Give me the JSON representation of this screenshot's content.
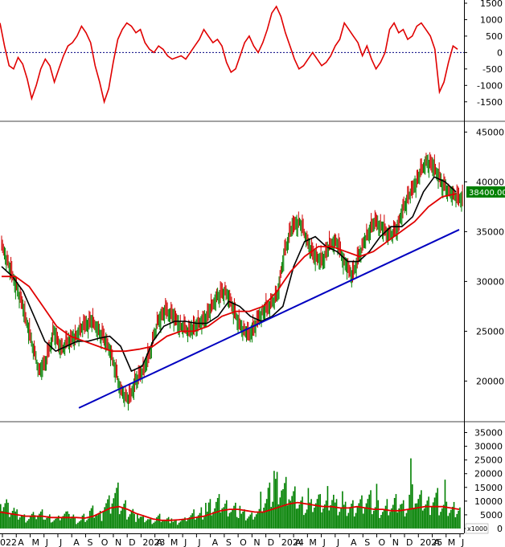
{
  "chart_data": [
    {
      "type": "line",
      "name": "oscillator-panel",
      "yticks": [
        1500,
        1000,
        500,
        0,
        -500,
        -1000,
        -1500
      ],
      "ylim": [
        -1750,
        1500
      ],
      "zero_line": true,
      "line_color": "#e00000",
      "signal_color": "#e00000",
      "values": [
        900,
        200,
        -400,
        -500,
        -150,
        -350,
        -800,
        -1400,
        -1000,
        -500,
        -200,
        -400,
        -900,
        -500,
        -100,
        200,
        300,
        500,
        800,
        600,
        300,
        -400,
        -900,
        -1500,
        -1100,
        -300,
        400,
        700,
        900,
        800,
        600,
        700,
        300,
        100,
        0,
        200,
        100,
        -100,
        -200,
        -150,
        -100,
        -200,
        0,
        200,
        400,
        700,
        500,
        300,
        400,
        200,
        -300,
        -600,
        -500,
        -100,
        300,
        500,
        200,
        0,
        300,
        700,
        1200,
        1400,
        1100,
        600,
        200,
        -200,
        -500,
        -400,
        -200,
        0,
        -200,
        -400,
        -300,
        -100,
        200,
        400,
        900,
        700,
        500,
        300,
        -100,
        200,
        -200,
        -500,
        -300,
        0,
        700,
        900,
        600,
        700,
        400,
        500,
        800,
        900,
        700,
        500,
        100,
        -1200,
        -900,
        -300,
        200,
        100
      ]
    },
    {
      "type": "candlestick",
      "name": "price-panel",
      "yticks": [
        45000,
        40000,
        35000,
        30000,
        25000,
        20000
      ],
      "ylim": [
        16000,
        46000
      ],
      "last_price_label": "38400.00",
      "up_color": "#008000",
      "down_color": "#d00000",
      "close": [
        33500,
        31500,
        29500,
        27000,
        24000,
        21000,
        22000,
        25000,
        23000,
        24000,
        24500,
        25500,
        26000,
        25000,
        24000,
        22000,
        19000,
        18000,
        20000,
        21000,
        23000,
        26000,
        27000,
        26500,
        25500,
        25000,
        25500,
        26000,
        27000,
        28500,
        29000,
        27500,
        25500,
        24500,
        25500,
        27000,
        27500,
        28500,
        33000,
        35500,
        36000,
        34000,
        32500,
        32000,
        33500,
        34000,
        32000,
        30500,
        32500,
        34500,
        36000,
        35500,
        34500,
        35000,
        37500,
        39000,
        40500,
        42000,
        41500,
        40000,
        39000,
        38400
      ],
      "ma_black": [
        31500,
        30500,
        29000,
        26500,
        24000,
        23000,
        23500,
        24000,
        24000,
        24300,
        24500,
        23500,
        21000,
        21500,
        24000,
        25500,
        26000,
        26000,
        25800,
        25800,
        26500,
        28000,
        27500,
        26500,
        26000,
        26500,
        27500,
        31500,
        34000,
        34500,
        33500,
        33000,
        32000,
        32000,
        33000,
        34500,
        35500,
        35500,
        36500,
        39000,
        40500,
        40000,
        39000
      ],
      "ma_red": [
        30500,
        30500,
        29500,
        27500,
        25500,
        24500,
        24000,
        23500,
        23000,
        23000,
        23200,
        23500,
        24500,
        25000,
        25000,
        25500,
        26500,
        27000,
        27000,
        27500,
        29000,
        31000,
        32500,
        33500,
        33500,
        33000,
        32500,
        33000,
        34000,
        35000,
        36000,
        37500,
        38500,
        38800
      ],
      "trendline": {
        "start": [
          0.17,
          17300
        ],
        "end": [
          1.0,
          35200
        ],
        "color": "#0000c0"
      }
    },
    {
      "type": "bar",
      "name": "volume-panel",
      "yticks": [
        35000,
        30000,
        25000,
        20000,
        15000,
        10000,
        5000,
        0
      ],
      "ylim": [
        0,
        37500
      ],
      "unit_label": "x1000",
      "bar_color": "#008000",
      "ma_color": "#e00000",
      "values": [
        9000,
        7000,
        5000,
        4000,
        4500,
        5000,
        4000,
        3500,
        5000,
        4500,
        3000,
        4000,
        6000,
        5000,
        9000,
        12000,
        8000,
        6000,
        4000,
        3500,
        3000,
        4000,
        3000,
        2500,
        3000,
        4500,
        5000,
        6000,
        8000,
        9000,
        8000,
        7000,
        5000,
        4500,
        6000,
        10000,
        12000,
        16000,
        14000,
        11000,
        9000,
        8000,
        10000,
        9000,
        12000,
        8000,
        7000,
        8000,
        9000,
        10000,
        8000,
        7000,
        8000,
        9000,
        8000,
        12000,
        10000,
        9000,
        11000,
        8000,
        7000,
        7500
      ],
      "ma_values": [
        6000,
        5500,
        5000,
        4500,
        4500,
        4500,
        4000,
        4000,
        4000,
        4000,
        3800,
        4500,
        6000,
        7500,
        8000,
        7000,
        5500,
        4500,
        3500,
        3000,
        3000,
        3200,
        3500,
        4000,
        4500,
        5500,
        6500,
        7000,
        7000,
        6500,
        6000,
        6000,
        7000,
        8000,
        9000,
        9500,
        9000,
        8500,
        8000,
        8000,
        7500,
        7500,
        8000,
        7500,
        7000,
        7000,
        6500,
        6500,
        7000,
        7500,
        8000,
        8000,
        8000,
        7500,
        7000
      ]
    }
  ],
  "x_axis": {
    "labels": [
      "022",
      "A",
      "M",
      "J",
      "J",
      "A",
      "S",
      "O",
      "N",
      "D",
      "2023",
      "A",
      "M",
      "J",
      "J",
      "A",
      "S",
      "O",
      "N",
      "D",
      "2024",
      "A",
      "M",
      "J",
      "J",
      "A",
      "S",
      "O",
      "N",
      "D",
      "2025",
      "A",
      "M",
      "J"
    ]
  },
  "colors": {
    "background": "#ffffff",
    "grid": "#000000",
    "zero_line": "#000080",
    "last_price_bg": "#008000",
    "last_price_text": "#ffffff"
  }
}
